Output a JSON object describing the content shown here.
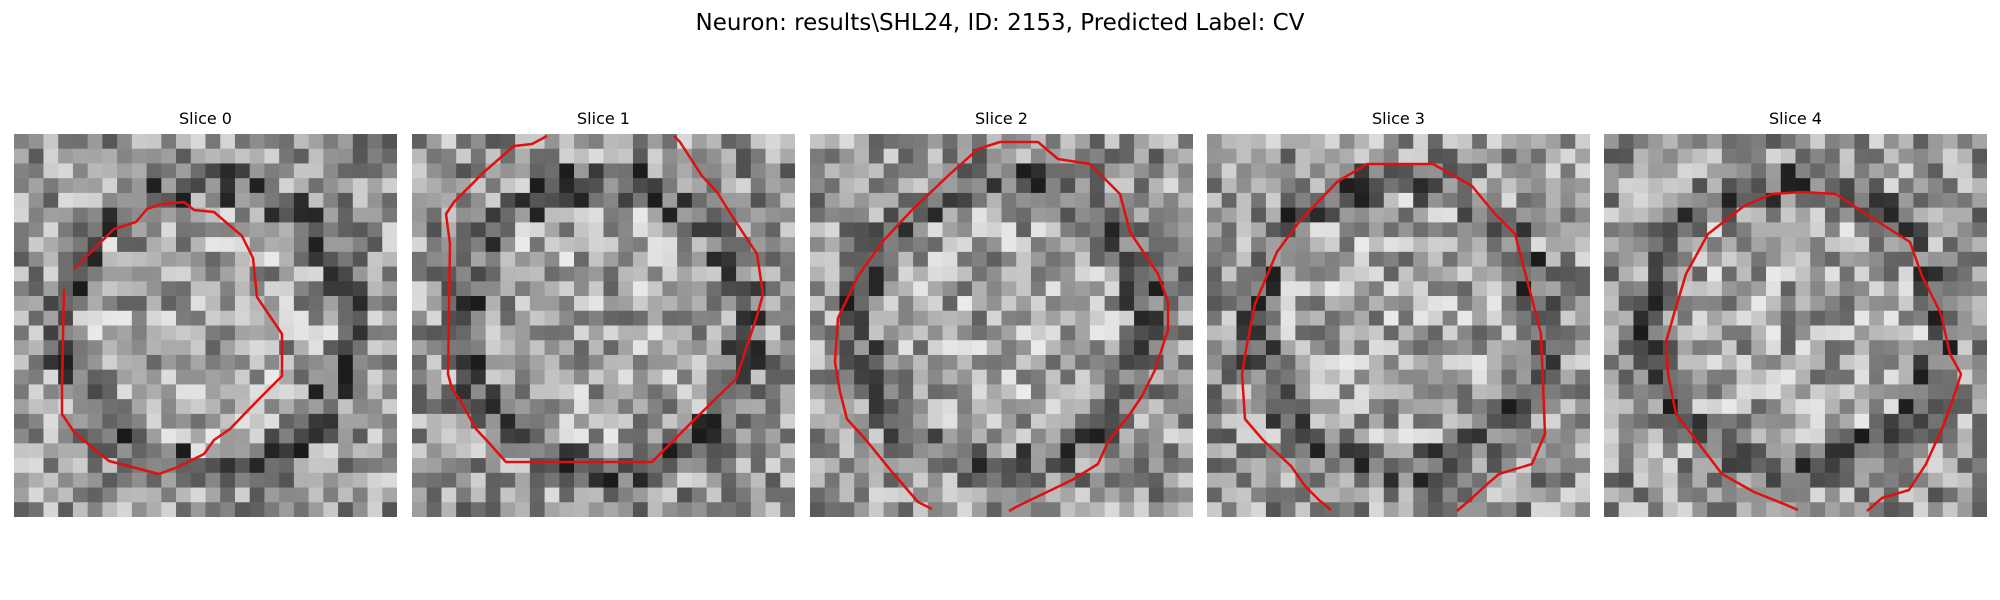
{
  "figure": {
    "title": "Neuron: results\\SHL24, ID: 2153, Predicted Label: CV"
  },
  "panels": [
    {
      "title": "Slice 0",
      "image": "grayscale micrograph slice with red contour outlining a neuron"
    },
    {
      "title": "Slice 1",
      "image": "grayscale micrograph slice with red contour outlining a neuron"
    },
    {
      "title": "Slice 2",
      "image": "grayscale micrograph slice with red contour outlining a neuron"
    },
    {
      "title": "Slice 3",
      "image": "grayscale micrograph slice with red contour outlining a neuron"
    },
    {
      "title": "Slice 4",
      "image": "grayscale micrograph slice with red contour outlining a neuron"
    }
  ],
  "colors": {
    "contour": "#e01010",
    "background": "#ffffff"
  }
}
